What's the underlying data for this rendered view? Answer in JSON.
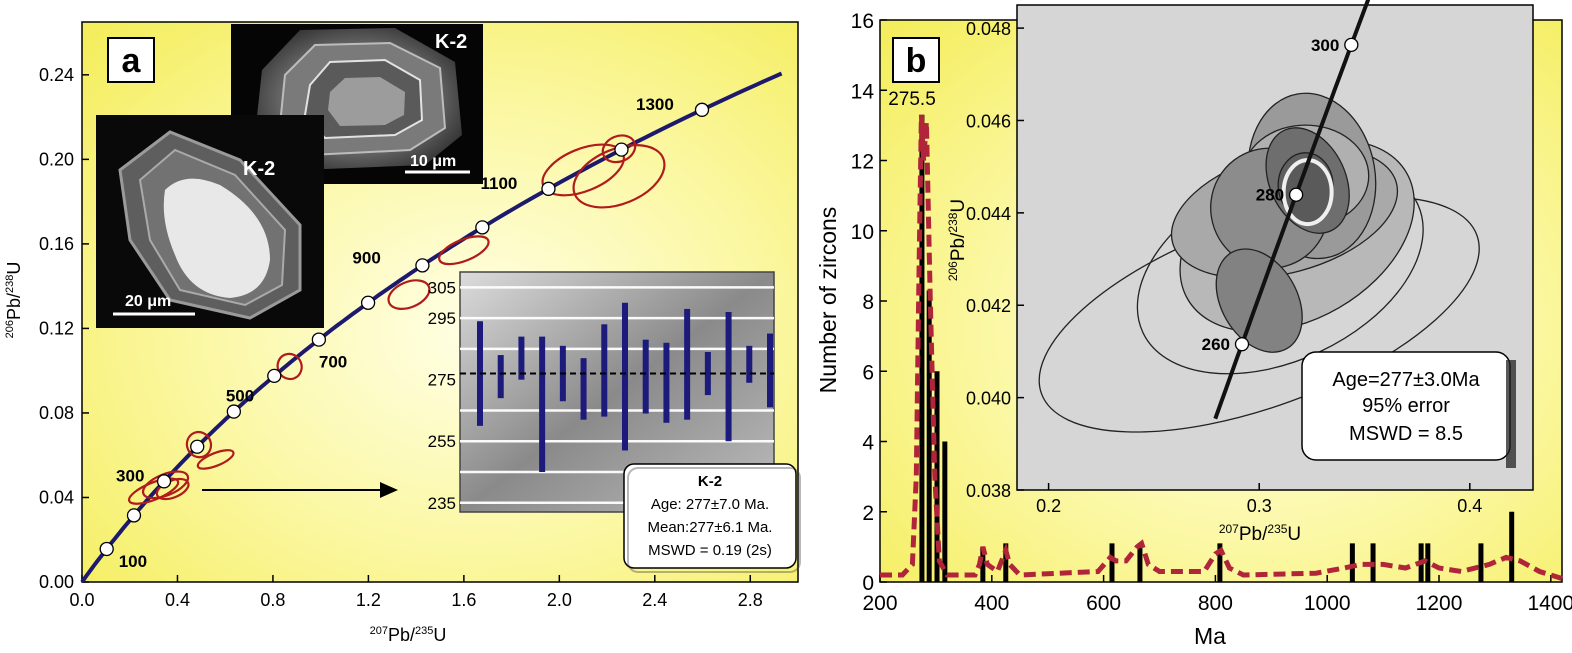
{
  "panel_a": {
    "letter": "a",
    "ylabel_sup": "206",
    "ylabel_main": "Pb/",
    "ylabel_sup2": "238",
    "ylabel_end": "U",
    "xlabel_sup": "207",
    "xlabel_main": "Pb/",
    "xlabel_sup2": "235",
    "xlabel_end": "U",
    "images": {
      "top": {
        "label": "K-2",
        "scale": "10 μm"
      },
      "bottom": {
        "label": "K-2",
        "scale": "20 μm"
      }
    },
    "inset": {
      "yticks": [
        "305",
        "295",
        "275",
        "255",
        "235"
      ],
      "bars": [
        {
          "center": 277,
          "half": 17
        },
        {
          "center": 276,
          "half": 7
        },
        {
          "center": 282,
          "half": 7
        },
        {
          "center": 267,
          "half": 22
        },
        {
          "center": 277,
          "half": 9
        },
        {
          "center": 272,
          "half": 10
        },
        {
          "center": 278,
          "half": 15
        },
        {
          "center": 276,
          "half": 24
        },
        {
          "center": 276,
          "half": 12
        },
        {
          "center": 274,
          "half": 13
        },
        {
          "center": 280,
          "half": 18
        },
        {
          "center": 277,
          "half": 7
        },
        {
          "center": 276,
          "half": 21
        },
        {
          "center": 280,
          "half": 6
        },
        {
          "center": 278,
          "half": 12
        }
      ],
      "mean_line": 277,
      "legend": {
        "title": "K-2",
        "line1": "Age: 277±7.0 Ma.",
        "line2": "Mean:277±6.1 Ma.",
        "line3": "MSWD = 0.19 (2s)"
      }
    }
  },
  "panel_b": {
    "letter": "b",
    "ylabel": "Number of zircons",
    "xlabel": "Ma",
    "peak_label": "275.5",
    "inset": {
      "ylabel_sup": "206",
      "ylabel_main": "Pb/",
      "ylabel_sup2": "238",
      "ylabel_end": "U",
      "xlabel_sup": "207",
      "xlabel_main": "Pb/",
      "xlabel_sup2": "235",
      "xlabel_end": "U",
      "legend": {
        "line1": "Age=277±3.0Ma",
        "line2": "95% error",
        "line3": "MSWD = 8.5"
      }
    }
  },
  "chart_data": [
    {
      "type": "scatter",
      "panel": "a",
      "description_kind": "concordia",
      "x_ticks": [
        "0.0",
        "0.4",
        "0.8",
        "1.2",
        "1.6",
        "2.0",
        "2.4",
        "2.8"
      ],
      "y_ticks": [
        "0.00",
        "0.04",
        "0.08",
        "0.12",
        "0.16",
        "0.20",
        "0.24"
      ],
      "xlim": [
        0,
        3.0
      ],
      "ylim": [
        0,
        0.265
      ],
      "concordia_ages": [
        {
          "age": 100,
          "label": "100"
        },
        {
          "age": 200,
          "label": ""
        },
        {
          "age": 300,
          "label": "300"
        },
        {
          "age": 400,
          "label": ""
        },
        {
          "age": 500,
          "label": "500"
        },
        {
          "age": 600,
          "label": ""
        },
        {
          "age": 700,
          "label": "700"
        },
        {
          "age": 800,
          "label": ""
        },
        {
          "age": 900,
          "label": "900"
        },
        {
          "age": 1000,
          "label": ""
        },
        {
          "age": 1100,
          "label": "1100"
        },
        {
          "age": 1200,
          "label": ""
        },
        {
          "age": 1300,
          "label": "1300"
        }
      ],
      "ellipses": [
        {
          "x": 0.3,
          "y": 0.043,
          "rx": 0.11,
          "ry": 0.004
        },
        {
          "x": 0.35,
          "y": 0.046,
          "rx": 0.1,
          "ry": 0.005
        },
        {
          "x": 0.38,
          "y": 0.044,
          "rx": 0.07,
          "ry": 0.004
        },
        {
          "x": 0.49,
          "y": 0.065,
          "rx": 0.05,
          "ry": 0.006
        },
        {
          "x": 0.56,
          "y": 0.058,
          "rx": 0.08,
          "ry": 0.003
        },
        {
          "x": 0.87,
          "y": 0.102,
          "rx": 0.05,
          "ry": 0.006
        },
        {
          "x": 1.37,
          "y": 0.136,
          "rx": 0.09,
          "ry": 0.006
        },
        {
          "x": 1.6,
          "y": 0.157,
          "rx": 0.11,
          "ry": 0.005
        },
        {
          "x": 2.1,
          "y": 0.195,
          "rx": 0.18,
          "ry": 0.01
        },
        {
          "x": 2.25,
          "y": 0.192,
          "rx": 0.2,
          "ry": 0.013
        },
        {
          "x": 2.25,
          "y": 0.205,
          "rx": 0.07,
          "ry": 0.006
        }
      ]
    },
    {
      "type": "bar",
      "panel": "a-inset",
      "ylim": [
        235,
        310
      ],
      "series": [
        {
          "values": [
            277,
            276,
            282,
            267,
            277,
            272,
            278,
            276,
            276,
            274,
            280,
            277,
            276,
            280,
            278
          ]
        }
      ]
    },
    {
      "type": "bar",
      "panel": "b",
      "x_ticks": [
        "200",
        "400",
        "600",
        "800",
        "1000",
        "1200",
        "1400"
      ],
      "y_ticks": [
        "0",
        "2",
        "4",
        "6",
        "8",
        "10",
        "12",
        "14",
        "16"
      ],
      "xlim": [
        200,
        1420
      ],
      "ylim": [
        0,
        16
      ],
      "bars": [
        {
          "x": 275,
          "value": 13.3
        },
        {
          "x": 288,
          "value": 8.3
        },
        {
          "x": 302,
          "value": 6.0
        },
        {
          "x": 316,
          "value": 4.0
        },
        {
          "x": 384,
          "value": 1.0
        },
        {
          "x": 425,
          "value": 1.1
        },
        {
          "x": 615,
          "value": 1.1
        },
        {
          "x": 665,
          "value": 1.1
        },
        {
          "x": 808,
          "value": 1.1
        },
        {
          "x": 1045,
          "value": 1.1
        },
        {
          "x": 1082,
          "value": 1.1
        },
        {
          "x": 1168,
          "value": 1.1
        },
        {
          "x": 1180,
          "value": 1.1
        },
        {
          "x": 1275,
          "value": 1.1
        },
        {
          "x": 1330,
          "value": 2.0
        }
      ],
      "curve": [
        [
          200,
          0.2
        ],
        [
          240,
          0.2
        ],
        [
          258,
          0.5
        ],
        [
          265,
          3
        ],
        [
          270,
          9
        ],
        [
          274,
          13.3
        ],
        [
          278,
          12
        ],
        [
          283,
          13.1
        ],
        [
          290,
          8
        ],
        [
          298,
          3
        ],
        [
          306,
          0.6
        ],
        [
          320,
          0.2
        ],
        [
          370,
          0.2
        ],
        [
          378,
          0.5
        ],
        [
          384,
          1.0
        ],
        [
          392,
          0.5
        ],
        [
          410,
          0.3
        ],
        [
          420,
          0.7
        ],
        [
          425,
          0.9
        ],
        [
          432,
          0.5
        ],
        [
          450,
          0.2
        ],
        [
          590,
          0.3
        ],
        [
          612,
          0.7
        ],
        [
          622,
          0.6
        ],
        [
          640,
          0.6
        ],
        [
          660,
          1.0
        ],
        [
          668,
          1.1
        ],
        [
          680,
          0.5
        ],
        [
          700,
          0.3
        ],
        [
          780,
          0.3
        ],
        [
          800,
          0.8
        ],
        [
          810,
          0.9
        ],
        [
          825,
          0.4
        ],
        [
          850,
          0.2
        ],
        [
          980,
          0.25
        ],
        [
          1030,
          0.4
        ],
        [
          1060,
          0.5
        ],
        [
          1100,
          0.5
        ],
        [
          1140,
          0.4
        ],
        [
          1175,
          0.6
        ],
        [
          1200,
          0.4
        ],
        [
          1240,
          0.3
        ],
        [
          1290,
          0.5
        ],
        [
          1320,
          0.7
        ],
        [
          1345,
          0.6
        ],
        [
          1380,
          0.3
        ],
        [
          1420,
          0.1
        ]
      ]
    },
    {
      "type": "scatter",
      "panel": "b-inset",
      "description_kind": "concordia",
      "x_ticks": [
        "0.2",
        "0.3",
        "0.4"
      ],
      "y_ticks": [
        "0.038",
        "0.040",
        "0.042",
        "0.044",
        "0.046",
        "0.048"
      ],
      "xlim": [
        0.185,
        0.43
      ],
      "ylim": [
        0.038,
        0.0485
      ],
      "concordia_ages": [
        {
          "age": 260,
          "label": "260"
        },
        {
          "age": 280,
          "label": "280"
        },
        {
          "age": 300,
          "label": "300"
        }
      ]
    }
  ],
  "colors": {
    "plot_bg": "#faf57a",
    "concordia": "#1d1a6e",
    "ellipse": "#b01b1b",
    "kde": "#b0253a",
    "inset_bg": "#d6d6d6"
  }
}
